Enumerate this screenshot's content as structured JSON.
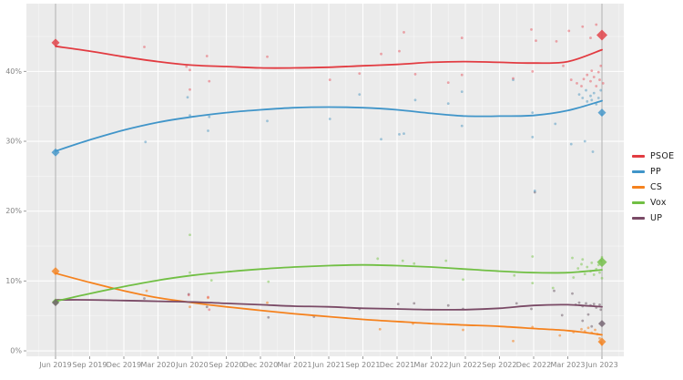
{
  "chart_data": {
    "type": "scatter",
    "title": "",
    "xlabel": "",
    "ylabel": "",
    "grid": "on",
    "legend_position": "right",
    "panel_background": "#ebebeb",
    "grid_color": "#ffffff",
    "reference_line_color": "#b0b0b0",
    "axis_text_color": "#848484",
    "x_tick_labels": [
      "Jun 2019",
      "Sep 2019",
      "Dec 2019",
      "Mar 2020",
      "Jun 2020",
      "Sep 2020",
      "Dec 2020",
      "Mar 2021",
      "Jun 2021",
      "Sep 2021",
      "Dec 2021",
      "Mar 2022",
      "Jun 2022",
      "Sep 2022",
      "Dec 2022",
      "Mar 2023",
      "Jun 2023"
    ],
    "x_tick_months": [
      0,
      3,
      6,
      9,
      12,
      15,
      18,
      21,
      24,
      27,
      30,
      33,
      36,
      39,
      42,
      45,
      48
    ],
    "y_ticks": [
      0,
      10,
      20,
      30,
      40
    ],
    "y_tick_labels": [
      "0%",
      "10%",
      "20%",
      "30%",
      "40%"
    ],
    "y_minor_ticks": [
      5,
      15,
      25,
      35,
      45
    ],
    "xlim_months": [
      -2.56,
      49.92
    ],
    "ylim": [
      -0.78,
      49.7
    ],
    "trend_months": [
      0,
      3,
      6,
      9,
      12,
      15,
      18,
      21,
      24,
      27,
      30,
      33,
      36,
      39,
      42,
      45,
      48
    ],
    "series": [
      {
        "id": "cs",
        "name": "CS",
        "color": "#f5821e",
        "scatter_color": "#f5821e",
        "trend": [
          11.1,
          9.8,
          8.6,
          7.6,
          6.9,
          6.3,
          5.8,
          5.3,
          4.9,
          4.5,
          4.2,
          3.9,
          3.7,
          3.5,
          3.2,
          2.9,
          2.3
        ],
        "scatter": [
          [
            8.0,
            8.6
          ],
          [
            11.8,
            6.3
          ],
          [
            13.4,
            7.6
          ],
          [
            18.6,
            6.9
          ],
          [
            28.5,
            3.1
          ],
          [
            31.4,
            3.9
          ],
          [
            35.8,
            3.0
          ],
          [
            40.2,
            1.4
          ],
          [
            41.9,
            3.4
          ],
          [
            44.3,
            2.2
          ],
          [
            45.5,
            2.7
          ],
          [
            46.2,
            3.1
          ],
          [
            46.5,
            2.8
          ],
          [
            46.8,
            3.3
          ],
          [
            47.1,
            2.6
          ],
          [
            47.4,
            3.0
          ],
          [
            47.6,
            2.4
          ],
          [
            47.8,
            1.8
          ],
          [
            47.9,
            1.2
          ],
          [
            48.0,
            0.9
          ]
        ]
      },
      {
        "id": "up",
        "name": "UP",
        "color": "#7a4a66",
        "scatter_color": "#72606e",
        "trend": [
          7.3,
          7.3,
          7.2,
          7.1,
          7.0,
          6.8,
          6.6,
          6.4,
          6.3,
          6.1,
          6.0,
          5.9,
          5.9,
          6.1,
          6.5,
          6.6,
          6.3
        ],
        "scatter": [
          [
            7.8,
            7.5
          ],
          [
            11.7,
            8.1
          ],
          [
            13.3,
            6.3
          ],
          [
            18.7,
            4.8
          ],
          [
            22.7,
            4.9
          ],
          [
            26.7,
            6.0
          ],
          [
            30.1,
            6.7
          ],
          [
            31.5,
            6.8
          ],
          [
            34.5,
            6.5
          ],
          [
            35.8,
            6.0
          ],
          [
            40.5,
            6.8
          ],
          [
            41.8,
            6.0
          ],
          [
            42.1,
            22.7
          ],
          [
            43.8,
            8.6
          ],
          [
            44.5,
            5.1
          ],
          [
            45.4,
            8.2
          ],
          [
            45.7,
            6.6
          ],
          [
            46.0,
            6.9
          ],
          [
            46.3,
            6.4
          ],
          [
            46.3,
            4.3
          ],
          [
            46.6,
            6.8
          ],
          [
            46.8,
            5.2
          ],
          [
            47.0,
            6.5
          ],
          [
            47.1,
            3.5
          ],
          [
            47.3,
            6.7
          ],
          [
            47.5,
            6.2
          ],
          [
            47.8,
            6.6
          ],
          [
            47.9,
            5.9
          ]
        ]
      },
      {
        "id": "vox",
        "name": "Vox",
        "color": "#71bf44",
        "scatter_color": "#82c956",
        "trend": [
          7.1,
          8.2,
          9.2,
          10.1,
          10.8,
          11.3,
          11.7,
          12.0,
          12.2,
          12.3,
          12.2,
          12.0,
          11.7,
          11.4,
          11.2,
          11.2,
          11.6
        ],
        "scatter": [
          [
            11.8,
            16.6
          ],
          [
            11.8,
            11.2
          ],
          [
            13.7,
            10.1
          ],
          [
            18.7,
            9.9
          ],
          [
            28.3,
            13.2
          ],
          [
            30.5,
            12.9
          ],
          [
            31.5,
            12.5
          ],
          [
            34.3,
            12.9
          ],
          [
            35.8,
            10.2
          ],
          [
            40.3,
            10.8
          ],
          [
            41.9,
            13.5
          ],
          [
            41.9,
            9.7
          ],
          [
            43.7,
            9.0
          ],
          [
            45.4,
            13.3
          ],
          [
            45.5,
            10.5
          ],
          [
            45.9,
            11.8
          ],
          [
            46.2,
            12.4
          ],
          [
            46.3,
            13.1
          ],
          [
            46.5,
            11.0
          ],
          [
            46.7,
            12.0
          ],
          [
            47.0,
            11.4
          ],
          [
            47.1,
            12.6
          ],
          [
            47.3,
            10.9
          ],
          [
            47.5,
            11.7
          ],
          [
            47.7,
            12.3
          ],
          [
            47.8,
            11.2
          ],
          [
            47.9,
            12.9
          ],
          [
            48.0,
            13.4
          ],
          [
            48.0,
            10.4
          ]
        ]
      },
      {
        "id": "pp",
        "name": "PP",
        "color": "#4095c9",
        "scatter_color": "#5b9fc4",
        "trend": [
          28.6,
          30.2,
          31.6,
          32.7,
          33.5,
          34.1,
          34.5,
          34.8,
          34.9,
          34.8,
          34.5,
          34.0,
          33.6,
          33.6,
          33.7,
          34.4,
          35.8
        ],
        "scatter": [
          [
            7.9,
            29.9
          ],
          [
            11.6,
            36.3
          ],
          [
            11.8,
            33.7
          ],
          [
            13.4,
            31.5
          ],
          [
            13.5,
            33.5
          ],
          [
            18.6,
            32.9
          ],
          [
            24.1,
            33.2
          ],
          [
            26.7,
            36.7
          ],
          [
            28.6,
            30.3
          ],
          [
            30.2,
            31.0
          ],
          [
            30.6,
            31.1
          ],
          [
            31.6,
            35.9
          ],
          [
            34.5,
            35.4
          ],
          [
            35.7,
            37.1
          ],
          [
            35.7,
            32.2
          ],
          [
            40.2,
            38.8
          ],
          [
            41.9,
            34.1
          ],
          [
            41.9,
            30.6
          ],
          [
            42.1,
            22.9
          ],
          [
            43.9,
            32.5
          ],
          [
            45.3,
            29.6
          ],
          [
            46.0,
            36.7
          ],
          [
            46.3,
            36.2
          ],
          [
            46.5,
            30.0
          ],
          [
            46.6,
            37.3
          ],
          [
            46.7,
            35.7
          ],
          [
            47.0,
            36.5
          ],
          [
            47.1,
            35.9
          ],
          [
            47.2,
            28.5
          ],
          [
            47.3,
            36.9
          ],
          [
            47.5,
            35.3
          ],
          [
            47.7,
            36.2
          ],
          [
            47.9,
            37.3
          ],
          [
            48.0,
            33.8
          ]
        ]
      },
      {
        "id": "psoe",
        "name": "PSOE",
        "color": "#e23b41",
        "scatter_color": "#e8636b",
        "trend": [
          43.6,
          42.9,
          42.1,
          41.4,
          40.9,
          40.7,
          40.5,
          40.5,
          40.6,
          40.8,
          41.0,
          41.3,
          41.4,
          41.3,
          41.2,
          41.4,
          43.1
        ],
        "scatter": [
          [
            7.8,
            43.5
          ],
          [
            11.5,
            40.7
          ],
          [
            11.8,
            40.2
          ],
          [
            11.8,
            37.4
          ],
          [
            11.7,
            8.0
          ],
          [
            13.3,
            42.2
          ],
          [
            13.4,
            7.7
          ],
          [
            13.5,
            38.6
          ],
          [
            13.5,
            5.9
          ],
          [
            18.6,
            42.1
          ],
          [
            24.1,
            38.8
          ],
          [
            26.7,
            39.7
          ],
          [
            28.6,
            42.5
          ],
          [
            30.2,
            42.9
          ],
          [
            30.6,
            45.6
          ],
          [
            31.6,
            39.6
          ],
          [
            34.5,
            38.4
          ],
          [
            35.7,
            44.8
          ],
          [
            35.7,
            39.5
          ],
          [
            40.2,
            39.0
          ],
          [
            41.8,
            46.0
          ],
          [
            41.9,
            40.0
          ],
          [
            42.2,
            44.4
          ],
          [
            44.0,
            44.3
          ],
          [
            44.6,
            40.8
          ],
          [
            45.1,
            45.8
          ],
          [
            45.3,
            38.8
          ],
          [
            45.8,
            38.3
          ],
          [
            46.2,
            37.9
          ],
          [
            46.3,
            46.4
          ],
          [
            46.4,
            38.9
          ],
          [
            46.7,
            39.5
          ],
          [
            47.0,
            44.8
          ],
          [
            47.0,
            38.6
          ],
          [
            47.1,
            40.1
          ],
          [
            47.3,
            39.2
          ],
          [
            47.5,
            46.7
          ],
          [
            47.5,
            37.9
          ],
          [
            47.7,
            39.9
          ],
          [
            47.8,
            38.8
          ],
          [
            47.9,
            40.8
          ],
          [
            48.1,
            38.3
          ]
        ]
      }
    ],
    "elections": [
      {
        "month": 0,
        "label": "Jun 2019",
        "results": {
          "psoe": 44.1,
          "pp": 28.4,
          "cs": 11.4,
          "vox": 7.0,
          "up": 6.9
        },
        "sizes": {
          "psoe": 4.5,
          "pp": 4.5,
          "cs": 4.5,
          "vox": 4.0,
          "up": 4.0
        }
      },
      {
        "month": 48,
        "label": "Jun 2023",
        "results": {
          "psoe": 45.2,
          "pp": 34.1,
          "cs": 1.3,
          "vox": 12.7,
          "up": 3.9
        },
        "sizes": {
          "psoe": 6.0,
          "pp": 4.5,
          "cs": 4.5,
          "vox": 5.5,
          "up": 4.0
        }
      }
    ]
  },
  "legend": {
    "items": [
      {
        "id": "psoe",
        "label": "PSOE",
        "color": "#e23b41"
      },
      {
        "id": "pp",
        "label": "PP",
        "color": "#4095c9"
      },
      {
        "id": "cs",
        "label": "CS",
        "color": "#f5821e"
      },
      {
        "id": "vox",
        "label": "Vox",
        "color": "#71bf44"
      },
      {
        "id": "up",
        "label": "UP",
        "color": "#7a4a66"
      }
    ]
  }
}
